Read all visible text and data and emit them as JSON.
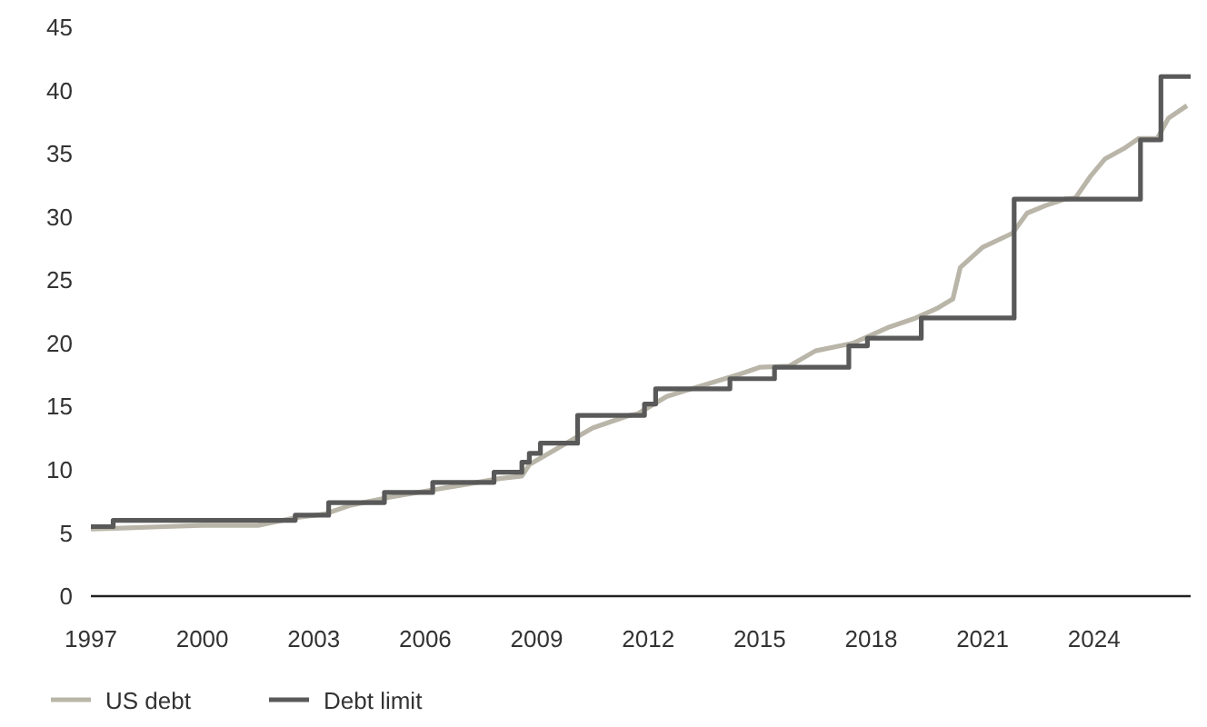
{
  "chart_data": {
    "type": "line",
    "xlim": [
      1997,
      2026.6
    ],
    "xticks": [
      1997,
      2000,
      2003,
      2006,
      2009,
      2012,
      2015,
      2018,
      2021,
      2024
    ],
    "ylim": [
      0,
      45
    ],
    "yticks": [
      0,
      5,
      10,
      15,
      20,
      25,
      30,
      35,
      40,
      45
    ],
    "grid": false,
    "legend": "bottom left",
    "line_style": "solid",
    "series": [
      {
        "name": "US debt",
        "color": "#b9b5a8",
        "x": [
          1997,
          1998,
          1999,
          2000,
          2001,
          2001.5,
          2002.5,
          2003.3,
          2004,
          2005,
          2006,
          2007,
          2008,
          2008.6,
          2008.8,
          2009.5,
          2010.5,
          2011.5,
          2011.7,
          2012.5,
          2013.5,
          2014.5,
          2015,
          2015.8,
          2016.5,
          2017.5,
          2018.5,
          2019.2,
          2019.8,
          2020.2,
          2020.4,
          2021,
          2021.8,
          2022.2,
          2022.7,
          2023.2,
          2023.5,
          2023.9,
          2024.3,
          2024.8,
          2025.2,
          2025.7,
          2026,
          2026.5
        ],
        "values": [
          5.3,
          5.4,
          5.5,
          5.6,
          5.6,
          5.6,
          6.2,
          6.5,
          7.2,
          7.8,
          8.3,
          8.8,
          9.3,
          9.5,
          10.4,
          11.6,
          13.3,
          14.3,
          14.4,
          15.8,
          16.7,
          17.6,
          18.1,
          18.2,
          19.4,
          20.0,
          21.3,
          22.0,
          22.8,
          23.5,
          26.0,
          27.6,
          28.7,
          30.3,
          30.9,
          31.4,
          31.5,
          33.2,
          34.6,
          35.4,
          36.2,
          36.2,
          37.8,
          38.8
        ]
      },
      {
        "name": "Debt limit",
        "type": "step",
        "color": "#595959",
        "x": [
          1997,
          1997.6,
          2002.5,
          2003.4,
          2004.9,
          2006.2,
          2007.85,
          2008.6,
          2008.8,
          2009.1,
          2010.1,
          2011.9,
          2012.2,
          2014.2,
          2015.4,
          2017.4,
          2017.9,
          2019.35,
          2021.85,
          2025.25,
          2025.8,
          2026.6
        ],
        "values": [
          5.5,
          6.0,
          6.4,
          7.4,
          8.2,
          9.0,
          9.8,
          10.6,
          11.3,
          12.1,
          14.3,
          15.2,
          16.4,
          17.2,
          18.1,
          19.8,
          20.4,
          22.0,
          31.4,
          36.1,
          41.1,
          41.1
        ]
      }
    ]
  }
}
